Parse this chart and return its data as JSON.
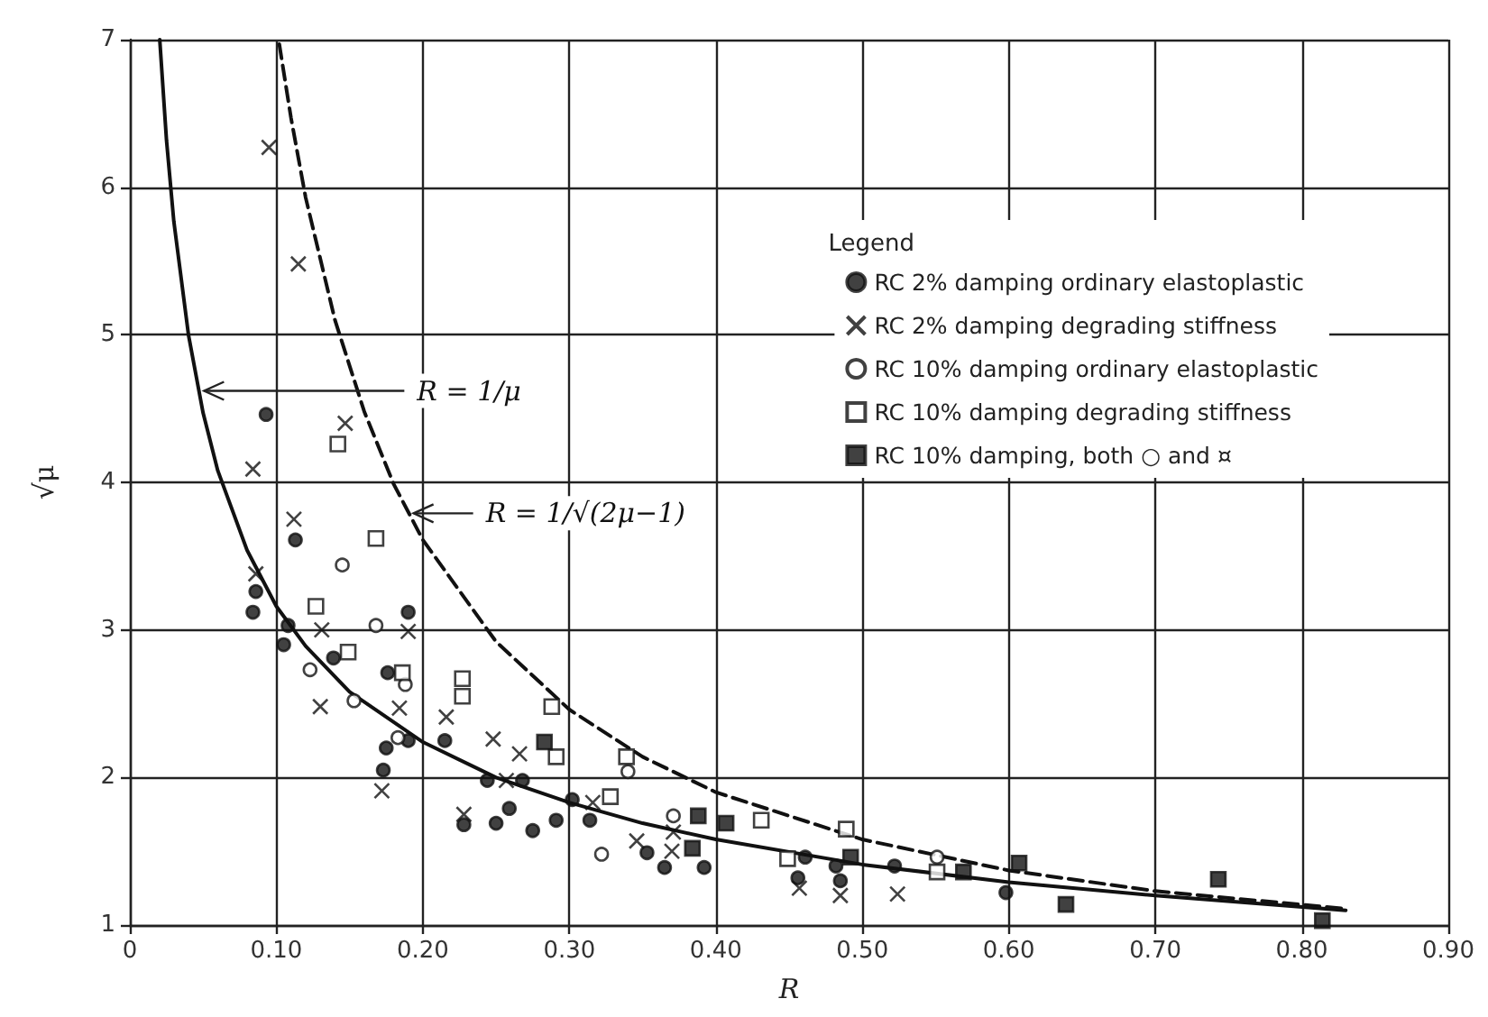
{
  "chart_data": {
    "type": "scatter",
    "xlabel": "R",
    "ylabel": "√μ",
    "legend_title": "Legend",
    "legend": "top right",
    "grid": true,
    "xlim": [
      0,
      0.9
    ],
    "ylim": [
      1,
      7
    ],
    "xticks": [
      0,
      {
        "value": 0.1,
        "label": "0.10"
      },
      {
        "value": 0.2,
        "label": "0.20"
      },
      {
        "value": 0.3,
        "label": "0.30"
      },
      {
        "value": 0.4,
        "label": "0.40"
      },
      {
        "value": 0.5,
        "label": "0.50"
      },
      {
        "value": 0.6,
        "label": "0.60"
      },
      {
        "value": 0.7,
        "label": "0.70"
      },
      {
        "value": 0.8,
        "label": "0.80"
      },
      {
        "value": 0.9,
        "label": "0.90"
      }
    ],
    "yticks": [
      1,
      2,
      3,
      4,
      5,
      6,
      7
    ],
    "annotations": [
      {
        "text": "R = 1/μ",
        "x": 0.047,
        "y": 4.62
      },
      {
        "text": "R = 1/√(2μ−1)",
        "x": 0.19,
        "y": 3.79
      }
    ],
    "series": [
      {
        "name": "RC 2% damping ordinary elastoplastic",
        "color": "#111111",
        "marker": "circle",
        "x": [
          0.093,
          0.113,
          0.086,
          0.084,
          0.105,
          0.108,
          0.19,
          0.139,
          0.176,
          0.175,
          0.173,
          0.215,
          0.244,
          0.268,
          0.302,
          0.314,
          0.228,
          0.25,
          0.259,
          0.275,
          0.291,
          0.353,
          0.365,
          0.392,
          0.456,
          0.461,
          0.482,
          0.485,
          0.522,
          0.598,
          0.19
        ],
        "values": [
          4.46,
          3.61,
          3.26,
          3.12,
          2.9,
          3.03,
          3.12,
          2.81,
          2.71,
          2.2,
          2.05,
          2.25,
          1.98,
          1.98,
          1.85,
          1.71,
          1.68,
          1.69,
          1.79,
          1.64,
          1.71,
          1.49,
          1.39,
          1.39,
          1.32,
          1.46,
          1.4,
          1.3,
          1.4,
          1.22,
          2.25
        ]
      },
      {
        "name": "RC 2% damping degrading stiffness",
        "color": "#111111",
        "marker": "cross",
        "x": [
          0.095,
          0.115,
          0.147,
          0.084,
          0.112,
          0.086,
          0.131,
          0.19,
          0.13,
          0.184,
          0.216,
          0.172,
          0.248,
          0.266,
          0.257,
          0.316,
          0.228,
          0.346,
          0.371,
          0.37,
          0.457,
          0.485,
          0.524
        ],
        "values": [
          6.27,
          5.48,
          4.4,
          4.09,
          3.75,
          3.38,
          3.0,
          2.99,
          2.48,
          2.47,
          2.41,
          1.91,
          2.26,
          2.16,
          1.98,
          1.83,
          1.75,
          1.57,
          1.63,
          1.5,
          1.25,
          1.2,
          1.21
        ]
      },
      {
        "name": "RC 10% damping ordinary elastoplastic",
        "color": "#ffffff",
        "marker": "circle",
        "x": [
          0.145,
          0.168,
          0.123,
          0.188,
          0.153,
          0.183,
          0.34,
          0.322,
          0.371,
          0.551
        ],
        "values": [
          3.44,
          3.03,
          2.73,
          2.63,
          2.52,
          2.27,
          2.04,
          1.48,
          1.74,
          1.46
        ]
      },
      {
        "name": "RC 10% damping degrading stiffness",
        "color": "#ffffff",
        "marker": "square",
        "x": [
          0.142,
          0.168,
          0.127,
          0.149,
          0.186,
          0.227,
          0.227,
          0.288,
          0.291,
          0.339,
          0.328,
          0.431,
          0.449,
          0.489,
          0.551
        ],
        "values": [
          4.26,
          3.62,
          3.16,
          2.85,
          2.71,
          2.67,
          2.55,
          2.48,
          2.14,
          2.14,
          1.87,
          1.71,
          1.45,
          1.65,
          1.36
        ]
      },
      {
        "name": "RC 10% damping, both ○ and ¤",
        "color": "#111111",
        "marker": "square",
        "x": [
          0.283,
          0.388,
          0.407,
          0.384,
          0.492,
          0.569,
          0.607,
          0.639,
          0.743,
          0.814
        ],
        "values": [
          2.24,
          1.74,
          1.69,
          1.52,
          1.46,
          1.36,
          1.42,
          1.14,
          1.31,
          1.03
        ]
      },
      {
        "type": "line",
        "color": "#111111",
        "line_style": "solid",
        "marker": "none",
        "x": [
          0.0204,
          0.025,
          0.03,
          0.04,
          0.05,
          0.06,
          0.08,
          0.1,
          0.12,
          0.15,
          0.2,
          0.25,
          0.3,
          0.35,
          0.4,
          0.5,
          0.6,
          0.7,
          0.83
        ],
        "values": [
          7,
          6.32,
          5.77,
          5.0,
          4.47,
          4.08,
          3.54,
          3.16,
          2.89,
          2.58,
          2.24,
          2.0,
          1.83,
          1.69,
          1.58,
          1.41,
          1.29,
          1.2,
          1.1
        ]
      },
      {
        "type": "line",
        "color": "#111111",
        "line_style": "dashed",
        "marker": "none",
        "x": [
          0.102,
          0.11,
          0.12,
          0.14,
          0.16,
          0.18,
          0.2,
          0.25,
          0.3,
          0.35,
          0.4,
          0.5,
          0.6,
          0.7,
          0.83
        ],
        "values": [
          6.97,
          6.47,
          5.93,
          5.1,
          4.48,
          3.99,
          3.61,
          2.92,
          2.46,
          2.14,
          1.9,
          1.58,
          1.37,
          1.23,
          1.11
        ]
      }
    ]
  }
}
